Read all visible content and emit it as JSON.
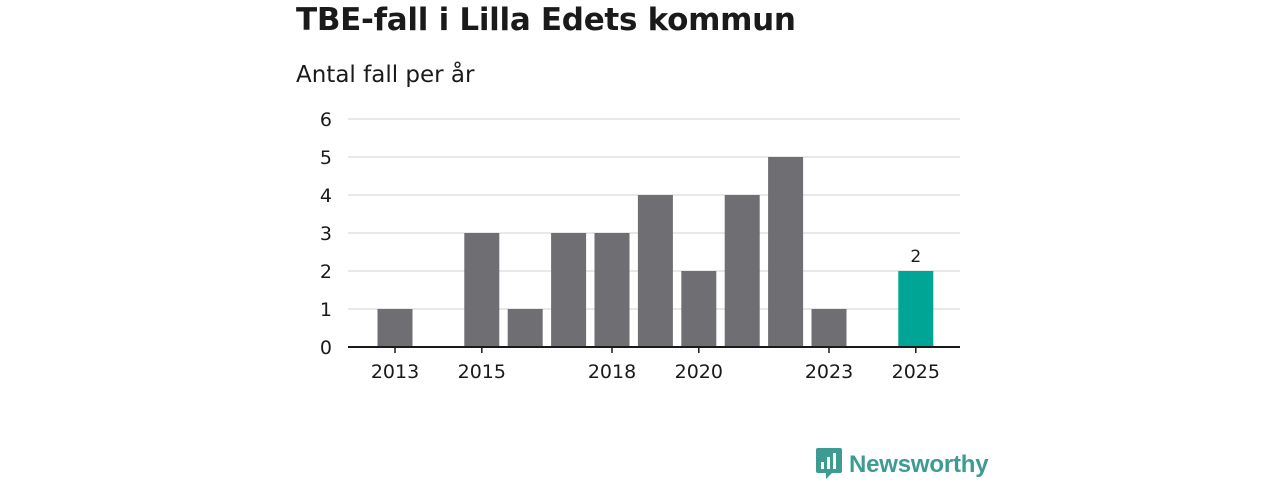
{
  "header": {
    "title": "TBE-fall i Lilla Edets kommun",
    "subtitle": "Antal fall per år"
  },
  "brand": {
    "name": "Newsworthy",
    "color": "#3c9c94",
    "icon": "newsworthy-logo-icon"
  },
  "colors": {
    "bar": "#6e6e73",
    "highlight": "#00a596",
    "grid": "#d9d9d9",
    "axis": "#1a1a1a"
  },
  "chart_data": {
    "type": "bar",
    "categories": [
      "2013",
      "2014",
      "2015",
      "2016",
      "2017",
      "2018",
      "2019",
      "2020",
      "2021",
      "2022",
      "2023",
      "2024",
      "2025"
    ],
    "values": [
      1,
      0,
      3,
      1,
      3,
      3,
      4,
      2,
      4,
      5,
      1,
      0,
      2
    ],
    "x_tick_labels": [
      "2013",
      "2015",
      "2018",
      "2020",
      "2023",
      "2025"
    ],
    "y_ticks": [
      0,
      1,
      2,
      3,
      4,
      5,
      6
    ],
    "ylim": [
      0,
      6
    ],
    "highlight": {
      "category": "2025",
      "label": "2"
    },
    "grid": true
  }
}
